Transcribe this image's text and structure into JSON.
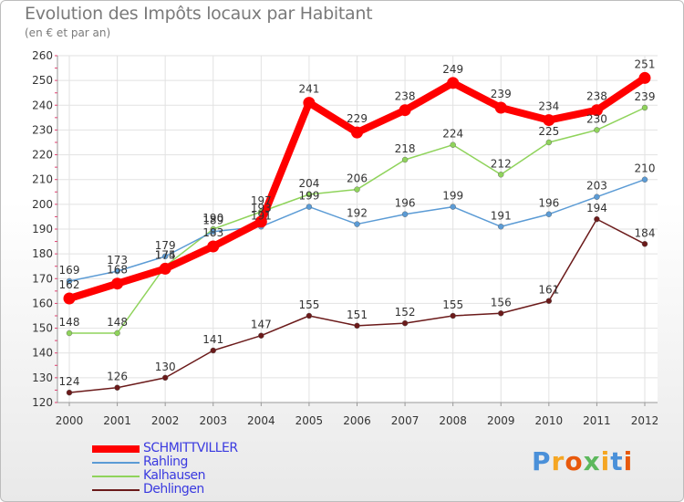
{
  "header": {
    "title": "Evolution des Impôts locaux par Habitant",
    "subtitle": "(en € et par an)"
  },
  "logo": {
    "letters": [
      {
        "ch": "P",
        "color": "#4a90d9"
      },
      {
        "ch": "r",
        "color": "#f5a623"
      },
      {
        "ch": "o",
        "color": "#e8590c"
      },
      {
        "ch": "x",
        "color": "#5cb85c"
      },
      {
        "ch": "i",
        "color": "#f5a623"
      },
      {
        "ch": "t",
        "color": "#4a90d9"
      },
      {
        "ch": "i",
        "color": "#e8590c"
      }
    ]
  },
  "chart_data": {
    "type": "line",
    "title": "Evolution des Impôts locaux par Habitant",
    "subtitle": "(en € et par an)",
    "x": [
      "2000",
      "2001",
      "2002",
      "2003",
      "2004",
      "2005",
      "2006",
      "2007",
      "2008",
      "2009",
      "2010",
      "2011",
      "2012"
    ],
    "ylim": [
      120,
      260
    ],
    "yticks": [
      120,
      130,
      140,
      150,
      160,
      170,
      180,
      190,
      200,
      210,
      220,
      230,
      240,
      250,
      260
    ],
    "grid": true,
    "legend": "bottom-left",
    "series": [
      {
        "name": "SCHMITTVILLER",
        "color": "#ff0000",
        "values": [
          162,
          168,
          174,
          183,
          193,
          241,
          229,
          238,
          249,
          239,
          234,
          238,
          251
        ]
      },
      {
        "name": "Rahling",
        "color": "#5b9bd5",
        "values": [
          169,
          173,
          179,
          189,
          191,
          199,
          192,
          196,
          199,
          191,
          196,
          203,
          210
        ]
      },
      {
        "name": "Kalhausen",
        "color": "#8fd35b",
        "values": [
          148,
          148,
          175,
          190,
          197,
          204,
          206,
          218,
          224,
          212,
          225,
          230,
          239
        ]
      },
      {
        "name": "Dehlingen",
        "color": "#6b1a1a",
        "values": [
          124,
          126,
          130,
          141,
          147,
          155,
          151,
          152,
          155,
          156,
          161,
          194,
          184
        ]
      }
    ]
  }
}
